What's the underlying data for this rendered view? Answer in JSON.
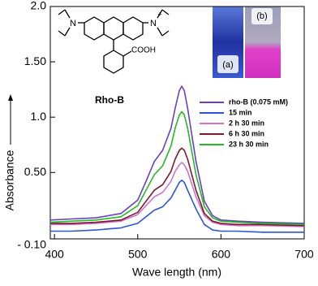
{
  "chart_data": {
    "type": "line",
    "x_label": "Wave length (nm)",
    "y_label": "Absorbance",
    "annotations": {
      "compound": "Rho-B",
      "n_left": "N",
      "n_right": "N",
      "charge": "+",
      "acid": "COOH",
      "photo_a": "(a)",
      "photo_b": "(b)"
    },
    "x": [
      395,
      420,
      450,
      480,
      500,
      510,
      520,
      530,
      540,
      545,
      550,
      553,
      556,
      560,
      570,
      580,
      590,
      600,
      620,
      650,
      700
    ],
    "series": [
      {
        "name": "rho-B (0.075 mM)",
        "color": "#6a3fc0",
        "values": [
          0.07,
          0.08,
          0.09,
          0.13,
          0.25,
          0.42,
          0.6,
          0.7,
          0.9,
          1.08,
          1.24,
          1.28,
          1.24,
          1.08,
          0.6,
          0.24,
          0.11,
          0.07,
          0.06,
          0.05,
          0.04
        ]
      },
      {
        "name": "15 min",
        "color": "#2b55d6",
        "values": [
          -0.03,
          -0.03,
          -0.02,
          0.0,
          0.04,
          0.1,
          0.16,
          0.19,
          0.27,
          0.34,
          0.41,
          0.43,
          0.41,
          0.34,
          0.17,
          0.03,
          -0.02,
          -0.03,
          -0.03,
          -0.04,
          -0.04
        ]
      },
      {
        "name": "2 h 30 min",
        "color": "#d070d0",
        "values": [
          0.03,
          0.03,
          0.04,
          0.06,
          0.12,
          0.2,
          0.28,
          0.32,
          0.42,
          0.51,
          0.57,
          0.59,
          0.57,
          0.51,
          0.28,
          0.11,
          0.05,
          0.03,
          0.02,
          0.02,
          0.01
        ]
      },
      {
        "name": "6 h 30 min",
        "color": "#7a1a2a",
        "values": [
          0.04,
          0.04,
          0.05,
          0.07,
          0.14,
          0.24,
          0.34,
          0.39,
          0.51,
          0.62,
          0.7,
          0.72,
          0.7,
          0.62,
          0.34,
          0.13,
          0.06,
          0.04,
          0.03,
          0.03,
          0.02
        ]
      },
      {
        "name": "23 h 30 min",
        "color": "#22bb22",
        "values": [
          0.05,
          0.06,
          0.07,
          0.1,
          0.2,
          0.34,
          0.48,
          0.56,
          0.74,
          0.9,
          1.02,
          1.05,
          1.02,
          0.9,
          0.48,
          0.19,
          0.09,
          0.06,
          0.05,
          0.04,
          0.03
        ]
      }
    ],
    "xlim": [
      395,
      700
    ],
    "xticks": [
      400,
      500,
      600,
      700
    ],
    "ylim": [
      -0.1,
      2.0
    ],
    "yticks": [
      {
        "value": -0.1,
        "label": "- 0.10"
      },
      {
        "value": 0.5,
        "label": "0.50"
      },
      {
        "value": 1,
        "label": "1.0"
      },
      {
        "value": 1.5,
        "label": "1.50"
      },
      {
        "value": 2,
        "label": "2.0"
      }
    ],
    "grid": false,
    "legend": "right"
  }
}
